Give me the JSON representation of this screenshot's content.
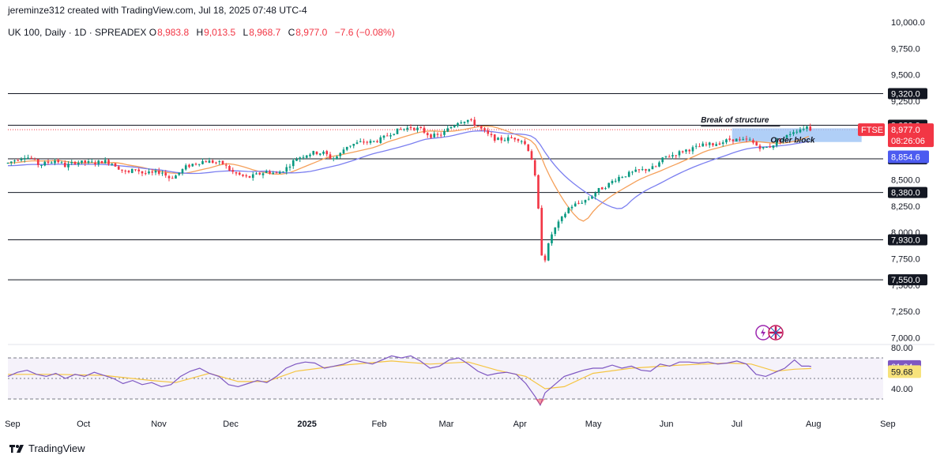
{
  "header": {
    "attribution": "jereminze312 created with TradingView.com, Jul 18, 2025 07:48 UTC-4"
  },
  "legend": {
    "title": "UK 100, Daily · 1D · SPREADEX",
    "open_label": "O",
    "open": "8,983.8",
    "high_label": "H",
    "high": "9,013.5",
    "low_label": "L",
    "low": "8,968.7",
    "close_label": "C",
    "close": "8,977.0",
    "change": "−7.6 (−0.08%)"
  },
  "footer": {
    "brand": "TradingView"
  },
  "colors": {
    "up": "#089981",
    "down": "#f23645",
    "ma_fast": "#f5a05a",
    "ma_slow": "#7b7ff0",
    "rsi": "#7e57c2",
    "rsi_ma": "#f5c542",
    "order_block": "#9cc3f5",
    "axis_dark": "#131722"
  },
  "chart_data": [
    {
      "type": "candlestick",
      "symbol": "UK 100",
      "x_ticks": [
        "Sep",
        "Oct",
        "Nov",
        "Dec",
        "2025",
        "Feb",
        "Mar",
        "Apr",
        "May",
        "Jun",
        "Jul",
        "Aug",
        "Sep"
      ],
      "y_ticks": [
        "10,000.0",
        "9,750.0",
        "9,500.0",
        "9,250.0",
        "9,000.0",
        "8,750.0",
        "8,500.0",
        "8,250.0",
        "8,000.0",
        "7,750.0",
        "7,500.0",
        "7,250.0",
        "7,000.0"
      ],
      "ylim": [
        6980,
        10000
      ],
      "levels": [
        {
          "value": 9320,
          "label": "9,320.0"
        },
        {
          "value": 9020,
          "label": "9,020.0"
        },
        {
          "value": 8700,
          "label": "8,700.0"
        },
        {
          "value": 8380,
          "label": "8,380.0"
        },
        {
          "value": 7930,
          "label": "7,930.0"
        },
        {
          "value": 7550,
          "label": "7,550.0"
        }
      ],
      "price_badge": {
        "label": "FTSE",
        "value": "8,977.0",
        "countdown": "08:26:06"
      },
      "ma_badge": {
        "value": "8,854.6"
      },
      "annotations": {
        "break_of_structure": "Break of structure",
        "order_block": "Order block",
        "order_block_range": [
          8860,
          8990
        ]
      },
      "path_points": [
        [
          0,
          8660
        ],
        [
          3,
          8690
        ],
        [
          7,
          8725
        ],
        [
          10,
          8700
        ],
        [
          13,
          8640
        ],
        [
          16,
          8660
        ],
        [
          20,
          8690
        ],
        [
          24,
          8630
        ],
        [
          28,
          8670
        ],
        [
          32,
          8665
        ],
        [
          36,
          8660
        ],
        [
          40,
          8680
        ],
        [
          44,
          8655
        ],
        [
          47,
          8600
        ],
        [
          50,
          8560
        ],
        [
          53,
          8610
        ],
        [
          56,
          8565
        ],
        [
          60,
          8560
        ],
        [
          64,
          8580
        ],
        [
          67,
          8520
        ],
        [
          70,
          8540
        ],
        [
          74,
          8620
        ],
        [
          78,
          8660
        ],
        [
          82,
          8680
        ],
        [
          86,
          8670
        ],
        [
          90,
          8650
        ],
        [
          93,
          8580
        ],
        [
          96,
          8550
        ],
        [
          100,
          8520
        ],
        [
          104,
          8550
        ],
        [
          108,
          8580
        ],
        [
          112,
          8560
        ],
        [
          116,
          8610
        ],
        [
          120,
          8700
        ],
        [
          124,
          8740
        ],
        [
          128,
          8760
        ],
        [
          132,
          8755
        ],
        [
          135,
          8700
        ],
        [
          138,
          8730
        ],
        [
          141,
          8820
        ],
        [
          144,
          8840
        ],
        [
          148,
          8860
        ],
        [
          152,
          8860
        ],
        [
          156,
          8890
        ],
        [
          160,
          8950
        ],
        [
          164,
          8980
        ],
        [
          168,
          9000
        ],
        [
          172,
          8980
        ],
        [
          176,
          8920
        ],
        [
          180,
          8920
        ],
        [
          184,
          8990
        ],
        [
          188,
          9060
        ],
        [
          192,
          9070
        ],
        [
          196,
          9010
        ],
        [
          200,
          8930
        ],
        [
          204,
          8880
        ],
        [
          208,
          8890
        ],
        [
          212,
          8900
        ],
        [
          214,
          8880
        ],
        [
          216,
          8830
        ],
        [
          218,
          8750
        ],
        [
          220,
          8500
        ],
        [
          222,
          8020
        ],
        [
          223,
          7650
        ],
        [
          225,
          7850
        ],
        [
          227,
          8000
        ],
        [
          230,
          8100
        ],
        [
          234,
          8240
        ],
        [
          238,
          8280
        ],
        [
          242,
          8320
        ],
        [
          246,
          8400
        ],
        [
          250,
          8450
        ],
        [
          254,
          8520
        ],
        [
          258,
          8550
        ],
        [
          262,
          8580
        ],
        [
          266,
          8600
        ],
        [
          270,
          8620
        ],
        [
          274,
          8720
        ],
        [
          278,
          8740
        ],
        [
          282,
          8780
        ],
        [
          286,
          8800
        ],
        [
          290,
          8830
        ],
        [
          294,
          8840
        ],
        [
          298,
          8860
        ],
        [
          302,
          8890
        ],
        [
          306,
          8870
        ],
        [
          309,
          8880
        ],
        [
          312,
          8830
        ],
        [
          315,
          8800
        ],
        [
          318,
          8820
        ],
        [
          321,
          8870
        ],
        [
          324,
          8900
        ],
        [
          327,
          8960
        ],
        [
          330,
          8980
        ],
        [
          333,
          9010
        ],
        [
          335,
          8977
        ]
      ],
      "x_range": [
        0,
        365
      ]
    },
    {
      "type": "line",
      "name": "RSI",
      "y_ticks": [
        "80.00",
        "40.00"
      ],
      "ylim": [
        30,
        80
      ],
      "bands": [
        70,
        50,
        30
      ],
      "last_value": "61.64",
      "ma_last_value": "59.68",
      "rsi_points": [
        [
          0,
          52
        ],
        [
          4,
          56
        ],
        [
          8,
          58
        ],
        [
          12,
          54
        ],
        [
          16,
          52
        ],
        [
          20,
          55
        ],
        [
          24,
          50
        ],
        [
          28,
          54
        ],
        [
          32,
          52
        ],
        [
          36,
          56
        ],
        [
          40,
          53
        ],
        [
          44,
          50
        ],
        [
          48,
          45
        ],
        [
          52,
          48
        ],
        [
          56,
          44
        ],
        [
          60,
          46
        ],
        [
          64,
          42
        ],
        [
          68,
          44
        ],
        [
          72,
          52
        ],
        [
          76,
          57
        ],
        [
          80,
          60
        ],
        [
          84,
          55
        ],
        [
          88,
          52
        ],
        [
          92,
          44
        ],
        [
          96,
          42
        ],
        [
          100,
          45
        ],
        [
          104,
          48
        ],
        [
          108,
          46
        ],
        [
          112,
          52
        ],
        [
          116,
          60
        ],
        [
          120,
          64
        ],
        [
          124,
          66
        ],
        [
          128,
          65
        ],
        [
          132,
          60
        ],
        [
          136,
          62
        ],
        [
          140,
          64
        ],
        [
          144,
          68
        ],
        [
          148,
          66
        ],
        [
          152,
          64
        ],
        [
          156,
          68
        ],
        [
          160,
          72
        ],
        [
          164,
          70
        ],
        [
          168,
          72
        ],
        [
          172,
          67
        ],
        [
          176,
          60
        ],
        [
          180,
          62
        ],
        [
          184,
          68
        ],
        [
          188,
          70
        ],
        [
          192,
          64
        ],
        [
          196,
          57
        ],
        [
          200,
          53
        ],
        [
          204,
          55
        ],
        [
          208,
          56
        ],
        [
          212,
          54
        ],
        [
          216,
          45
        ],
        [
          220,
          32
        ],
        [
          222,
          24
        ],
        [
          224,
          36
        ],
        [
          228,
          44
        ],
        [
          232,
          52
        ],
        [
          236,
          55
        ],
        [
          240,
          58
        ],
        [
          244,
          60
        ],
        [
          248,
          60
        ],
        [
          252,
          63
        ],
        [
          256,
          60
        ],
        [
          260,
          62
        ],
        [
          264,
          58
        ],
        [
          268,
          57
        ],
        [
          272,
          64
        ],
        [
          276,
          62
        ],
        [
          280,
          66
        ],
        [
          284,
          66
        ],
        [
          288,
          65
        ],
        [
          292,
          66
        ],
        [
          296,
          64
        ],
        [
          300,
          65
        ],
        [
          304,
          67
        ],
        [
          308,
          64
        ],
        [
          312,
          54
        ],
        [
          316,
          52
        ],
        [
          320,
          56
        ],
        [
          324,
          60
        ],
        [
          328,
          68
        ],
        [
          331,
          62
        ],
        [
          334,
          62
        ],
        [
          335,
          61.64
        ]
      ],
      "rsi_ma_points": [
        [
          0,
          54
        ],
        [
          20,
          54
        ],
        [
          40,
          53
        ],
        [
          60,
          48
        ],
        [
          70,
          46
        ],
        [
          84,
          55
        ],
        [
          96,
          47
        ],
        [
          108,
          47
        ],
        [
          120,
          57
        ],
        [
          140,
          63
        ],
        [
          160,
          67
        ],
        [
          176,
          64
        ],
        [
          192,
          66
        ],
        [
          204,
          58
        ],
        [
          216,
          52
        ],
        [
          224,
          40
        ],
        [
          232,
          42
        ],
        [
          244,
          55
        ],
        [
          260,
          60
        ],
        [
          280,
          63
        ],
        [
          300,
          65
        ],
        [
          310,
          64
        ],
        [
          320,
          57
        ],
        [
          328,
          59
        ],
        [
          335,
          59.68
        ]
      ],
      "x_range": [
        0,
        365
      ]
    }
  ]
}
